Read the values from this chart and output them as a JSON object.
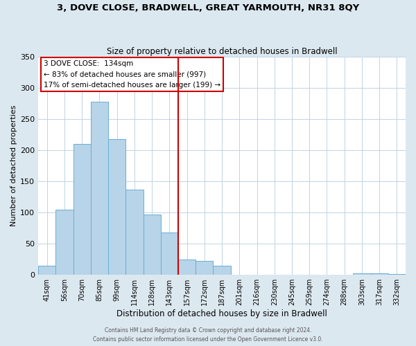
{
  "title1": "3, DOVE CLOSE, BRADWELL, GREAT YARMOUTH, NR31 8QY",
  "title2": "Size of property relative to detached houses in Bradwell",
  "xlabel": "Distribution of detached houses by size in Bradwell",
  "ylabel": "Number of detached properties",
  "bar_labels": [
    "41sqm",
    "56sqm",
    "70sqm",
    "85sqm",
    "99sqm",
    "114sqm",
    "128sqm",
    "143sqm",
    "157sqm",
    "172sqm",
    "187sqm",
    "201sqm",
    "216sqm",
    "230sqm",
    "245sqm",
    "259sqm",
    "274sqm",
    "288sqm",
    "303sqm",
    "317sqm",
    "332sqm"
  ],
  "bar_values": [
    15,
    105,
    210,
    278,
    218,
    137,
    97,
    68,
    25,
    23,
    15,
    0,
    0,
    0,
    0,
    0,
    0,
    0,
    3,
    2,
    1
  ],
  "bar_color": "#b8d4e8",
  "bar_edge_color": "#6aadd5",
  "vline_index": 7.5,
  "vline_color": "#cc0000",
  "annotation_title": "3 DOVE CLOSE:  134sqm",
  "annotation_line1": "← 83% of detached houses are smaller (997)",
  "annotation_line2": "17% of semi-detached houses are larger (199) →",
  "annotation_box_edgecolor": "#cc0000",
  "annotation_bg": "#ffffff",
  "ylim": [
    0,
    350
  ],
  "yticks": [
    0,
    50,
    100,
    150,
    200,
    250,
    300,
    350
  ],
  "footer1": "Contains HM Land Registry data © Crown copyright and database right 2024.",
  "footer2": "Contains public sector information licensed under the Open Government Licence v3.0.",
  "background_color": "#dce8f0",
  "plot_bg_color": "#ffffff",
  "grid_color": "#c0d4e4"
}
